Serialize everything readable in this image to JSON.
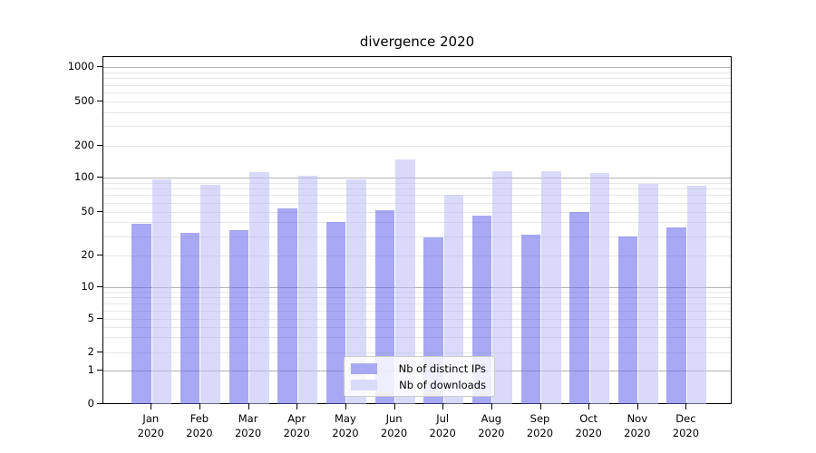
{
  "chart_data": {
    "type": "bar",
    "title": "divergence 2020",
    "year": "2020",
    "categories": [
      "Jan",
      "Feb",
      "Mar",
      "Apr",
      "May",
      "Jun",
      "Jul",
      "Aug",
      "Sep",
      "Oct",
      "Nov",
      "Dec"
    ],
    "series": [
      {
        "name": "Nb of distinct IPs",
        "color": "#a9a9f3",
        "bar_rgba": "rgba(97,97,237,0.55)",
        "values": [
          39,
          32,
          34,
          53,
          40,
          51,
          29,
          46,
          31,
          50,
          30,
          36
        ]
      },
      {
        "name": "Nb of downloads",
        "color": "#dadaf9",
        "bar_rgba": "rgba(186,186,246,0.55)",
        "values": [
          96,
          86,
          113,
          105,
          96,
          148,
          70,
          114,
          114,
          110,
          88,
          84
        ]
      }
    ],
    "yscale": "symlog",
    "y_tick_labels": [
      "0",
      "1",
      "2",
      "5",
      "10",
      "20",
      "50",
      "100",
      "200",
      "500",
      "1000"
    ],
    "ylim": [
      0,
      1000
    ],
    "grid": "on",
    "legend_position": "lower center",
    "colors": {
      "major_gridline": "#b3b3b3",
      "minor_gridline": "#e7e7e7",
      "axis": "#000000",
      "background": "#ffffff"
    }
  }
}
